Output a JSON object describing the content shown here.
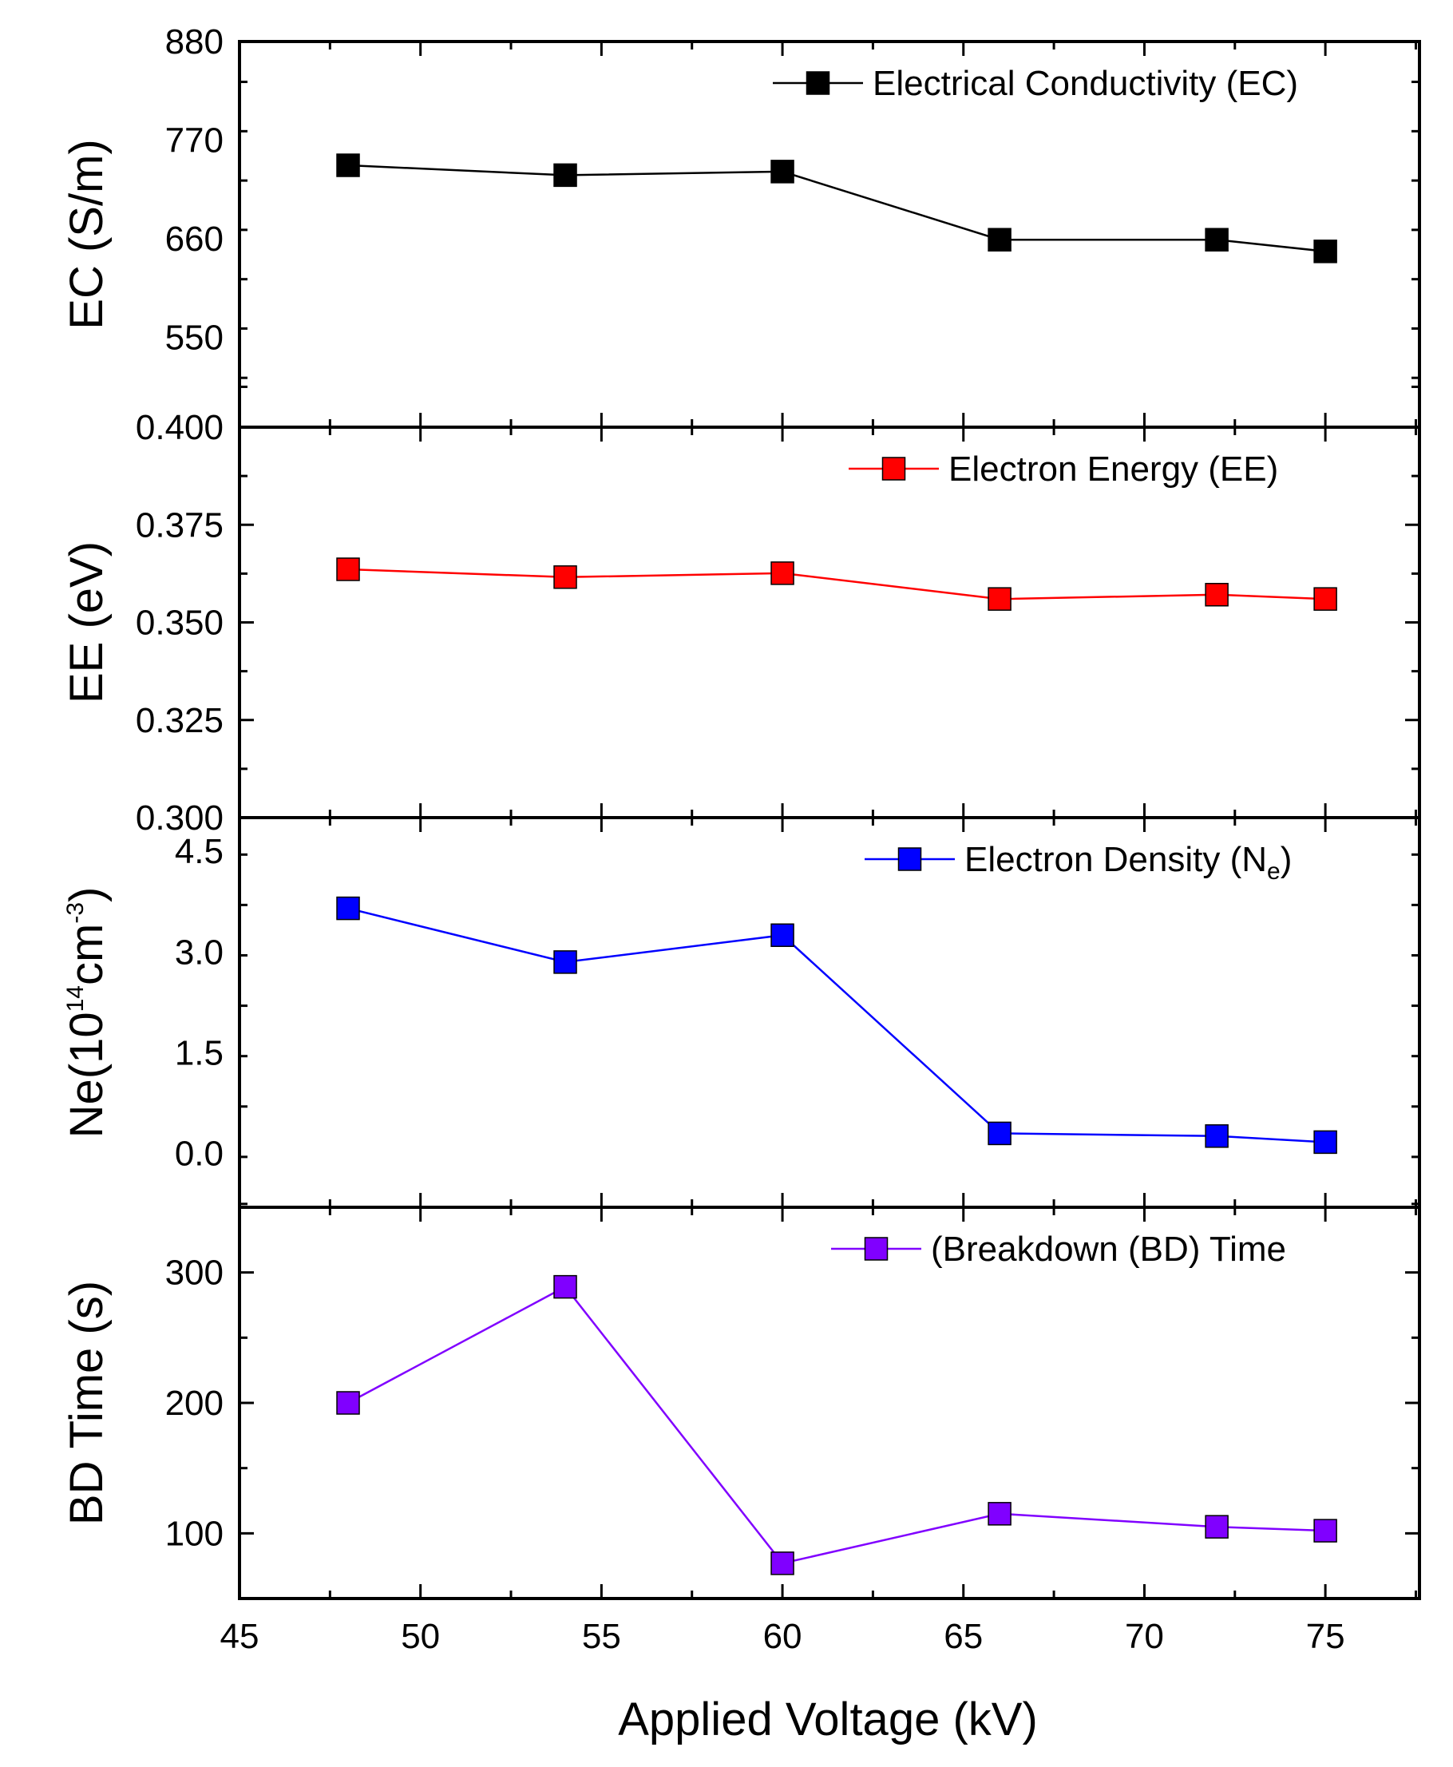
{
  "chart_data": [
    {
      "type": "line",
      "panel": "ec",
      "ylabel": "EC (S/m)",
      "ylim": [
        450,
        880
      ],
      "yticks": [
        550,
        660,
        770,
        880
      ],
      "ytick_labels": [
        "550",
        "660",
        "770",
        "880"
      ],
      "legend": "Electrical Conductivity (EC)",
      "color": "#000000",
      "series": [
        {
          "name": "Electrical Conductivity (EC)",
          "x": [
            48,
            54,
            60,
            66,
            72,
            75
          ],
          "y": [
            742,
            731,
            735,
            659,
            659,
            646
          ]
        }
      ]
    },
    {
      "type": "line",
      "panel": "ee",
      "ylabel": "EE (eV)",
      "ylim": [
        0.3,
        0.4
      ],
      "yticks": [
        0.3,
        0.325,
        0.35,
        0.375,
        0.4
      ],
      "ytick_labels": [
        "0.300",
        "0.325",
        "0.350",
        "0.375",
        "0.400"
      ],
      "legend": "Electron Energy (EE)",
      "color": "#ff0000",
      "series": [
        {
          "name": "Electron Energy (EE)",
          "x": [
            48,
            54,
            60,
            66,
            72,
            75
          ],
          "y": [
            0.3636,
            0.3616,
            0.3626,
            0.356,
            0.3571,
            0.356
          ]
        }
      ]
    },
    {
      "type": "line",
      "panel": "ne",
      "ylabel": "Ne(10",
      "ylabel_sup1": "14",
      "ylabel_mid": "cm",
      "ylabel_sup2": "-3",
      "ylabel_end": ")",
      "ylim": [
        -0.8,
        5.0
      ],
      "yticks": [
        0.0,
        1.5,
        3.0,
        4.5
      ],
      "ytick_labels": [
        "0.0",
        "1.5",
        "3.0",
        "4.5"
      ],
      "legend": "Electron Density (N",
      "legend_sub": "e",
      "legend_end": ")",
      "color": "#0000ff",
      "series": [
        {
          "name": "Electron Density (Ne)",
          "x": [
            48,
            54,
            60,
            66,
            72,
            75
          ],
          "y": [
            3.65,
            2.85,
            3.25,
            0.3,
            0.26,
            0.17
          ]
        }
      ]
    },
    {
      "type": "line",
      "panel": "bd",
      "ylabel": "BD Time (s)",
      "ylim": [
        50,
        350
      ],
      "yticks": [
        100,
        200,
        300
      ],
      "ytick_labels": [
        "100",
        "200",
        "300"
      ],
      "legend": "(Breakdown (BD) Time",
      "color": "#8000ff",
      "series": [
        {
          "name": "(Breakdown (BD) Time",
          "x": [
            48,
            54,
            60,
            66,
            72,
            75
          ],
          "y": [
            200,
            289,
            77,
            115,
            105,
            102
          ]
        }
      ]
    }
  ],
  "x_axis": {
    "label": "Applied Voltage (kV)",
    "xlim": [
      45,
      77.6
    ],
    "ticks": [
      45,
      50,
      55,
      60,
      65,
      70,
      75
    ],
    "tick_labels": [
      "45",
      "50",
      "55",
      "60",
      "65",
      "70",
      "75"
    ]
  }
}
